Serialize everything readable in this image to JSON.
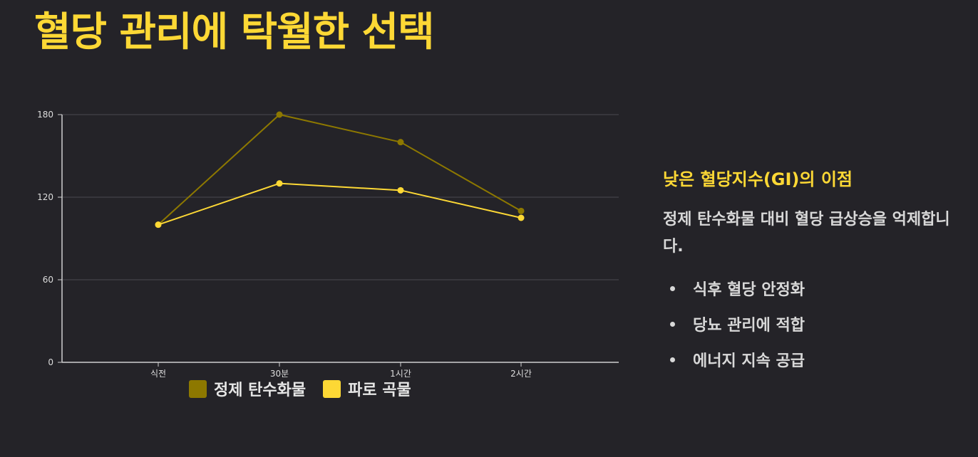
{
  "title": "혈당 관리에 탁월한 선택",
  "side_panel": {
    "heading": "낮은 혈당지수(GI)의 이점",
    "description": "정제 탄수화물 대비 혈당 급상승을 억제합니다.",
    "bullets": [
      "식후 혈당 안정화",
      "당뇨 관리에 적합",
      "에너지 지속 공급"
    ]
  },
  "colors": {
    "title": "#fdd835",
    "refined": "#8d7800",
    "whole_grain": "#fdd835",
    "background": "#242328"
  },
  "chart_data": {
    "type": "line",
    "categories": [
      "식전",
      "30분",
      "1시간",
      "2시간"
    ],
    "series": [
      {
        "name": "정제 탄수화물",
        "values": [
          100,
          180,
          160,
          110
        ]
      },
      {
        "name": "파로 곡물",
        "values": [
          100,
          130,
          125,
          105
        ]
      }
    ],
    "ylim": [
      0,
      180
    ],
    "yticks": [
      0,
      60,
      120,
      180
    ],
    "grid": true,
    "legend_position": "bottom",
    "title": "",
    "xlabel": "",
    "ylabel": ""
  }
}
